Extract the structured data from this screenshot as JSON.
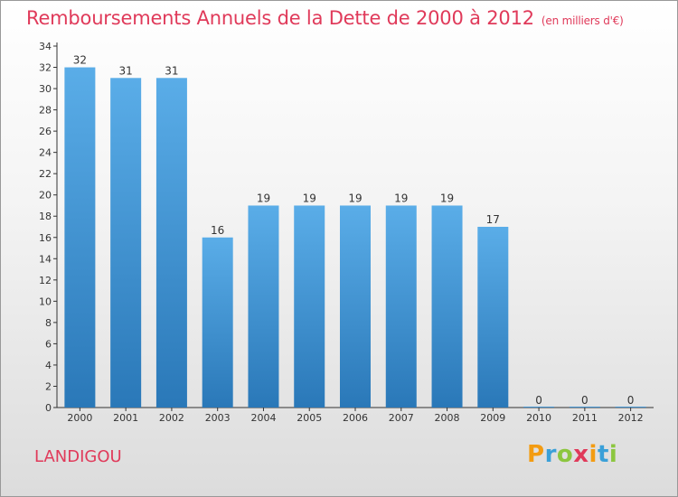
{
  "header": {
    "title": "Remboursements Annuels de la Dette de 2000 à 2012",
    "unit": "(en milliers d'€)"
  },
  "commune": "LANDIGOU",
  "logo": {
    "letters": [
      "P",
      "r",
      "o",
      "x",
      "i",
      "t",
      "i"
    ],
    "colors": [
      "#f39c12",
      "#3aa0d8",
      "#8cc63f",
      "#e03a5a",
      "#f39c12",
      "#3aa0d8",
      "#8cc63f"
    ]
  },
  "colors": {
    "bar_top": "#5aade8",
    "bar_bottom": "#2a78b8",
    "title": "#e03a5a"
  },
  "chart_data": {
    "type": "bar",
    "categories": [
      "2000",
      "2001",
      "2002",
      "2003",
      "2004",
      "2005",
      "2006",
      "2007",
      "2008",
      "2009",
      "2010",
      "2011",
      "2012"
    ],
    "values": [
      32,
      31,
      31,
      16,
      19,
      19,
      19,
      19,
      19,
      17,
      0,
      0,
      0
    ],
    "ylim": [
      0,
      34
    ],
    "yticks": [
      0,
      2,
      4,
      6,
      8,
      10,
      12,
      14,
      16,
      18,
      20,
      22,
      24,
      26,
      28,
      30,
      32,
      34
    ],
    "grid": false,
    "data_labels": true
  }
}
